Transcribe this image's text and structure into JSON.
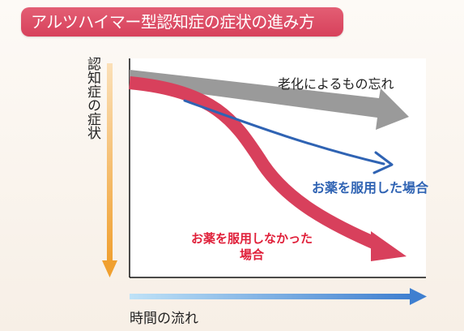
{
  "title": "アルツハイマー型認知症の症状の進み方",
  "axes": {
    "y_label": "認知症の症状",
    "x_label": "時間の流れ"
  },
  "curves": {
    "aging": {
      "label": "老化によるもの忘れ",
      "color": "#9a9a9a"
    },
    "medicated": {
      "label": "お薬を服用した場合",
      "color": "#2f63b3"
    },
    "unmedicated": {
      "label_line1": "お薬を服用しなかった",
      "label_line2": "場合",
      "color": "#d8405c"
    }
  },
  "colors": {
    "title_bg": "#d7415b",
    "y_arrow": "#f0a030",
    "x_arrow": "#3f7fd0"
  }
}
